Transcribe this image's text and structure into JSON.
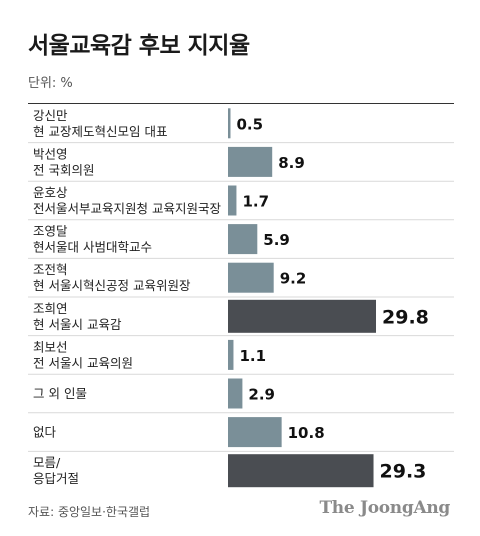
{
  "header": {
    "title": "서울교육감 후보 지지율",
    "unit": "단위: %"
  },
  "footer": {
    "source": "자료: 중앙일보·한국갤럽",
    "logo": "The JoongAng"
  },
  "colors": {
    "bar_normal": "#7a8f98",
    "bar_highlight": "#4a4d52",
    "divider": "#d9d9d9",
    "text": "#222222"
  },
  "chart_data": {
    "type": "bar",
    "orientation": "horizontal",
    "categories": [
      "강신만|현 교장제도혁신모임 대표",
      "박선영|전 국회의원",
      "윤호상|전서울서부교육지원청 교육지원국장",
      "조영달|현서울대 사범대학교수",
      "조전혁|현 서울시혁신공정 교육위원장",
      "조희연|현 서울시 교육감",
      "최보선|전 서울시 교육의원",
      "그 외 인물",
      "없다",
      "모름/|응답거절"
    ],
    "values": [
      0.5,
      8.9,
      1.7,
      5.9,
      9.2,
      29.8,
      1.1,
      2.9,
      10.8,
      29.3
    ],
    "value_labels": [
      "0.5",
      "8.9",
      "1.7",
      "5.9",
      "9.2",
      "29.8",
      "1.1",
      "2.9",
      "10.8",
      "29.3"
    ],
    "highlight": [
      false,
      false,
      false,
      false,
      false,
      true,
      false,
      false,
      false,
      true
    ],
    "title": "서울교육감 후보 지지율",
    "xlabel": "",
    "ylabel": "",
    "xlim": [
      0,
      30
    ],
    "grid": false,
    "legend": "none"
  }
}
